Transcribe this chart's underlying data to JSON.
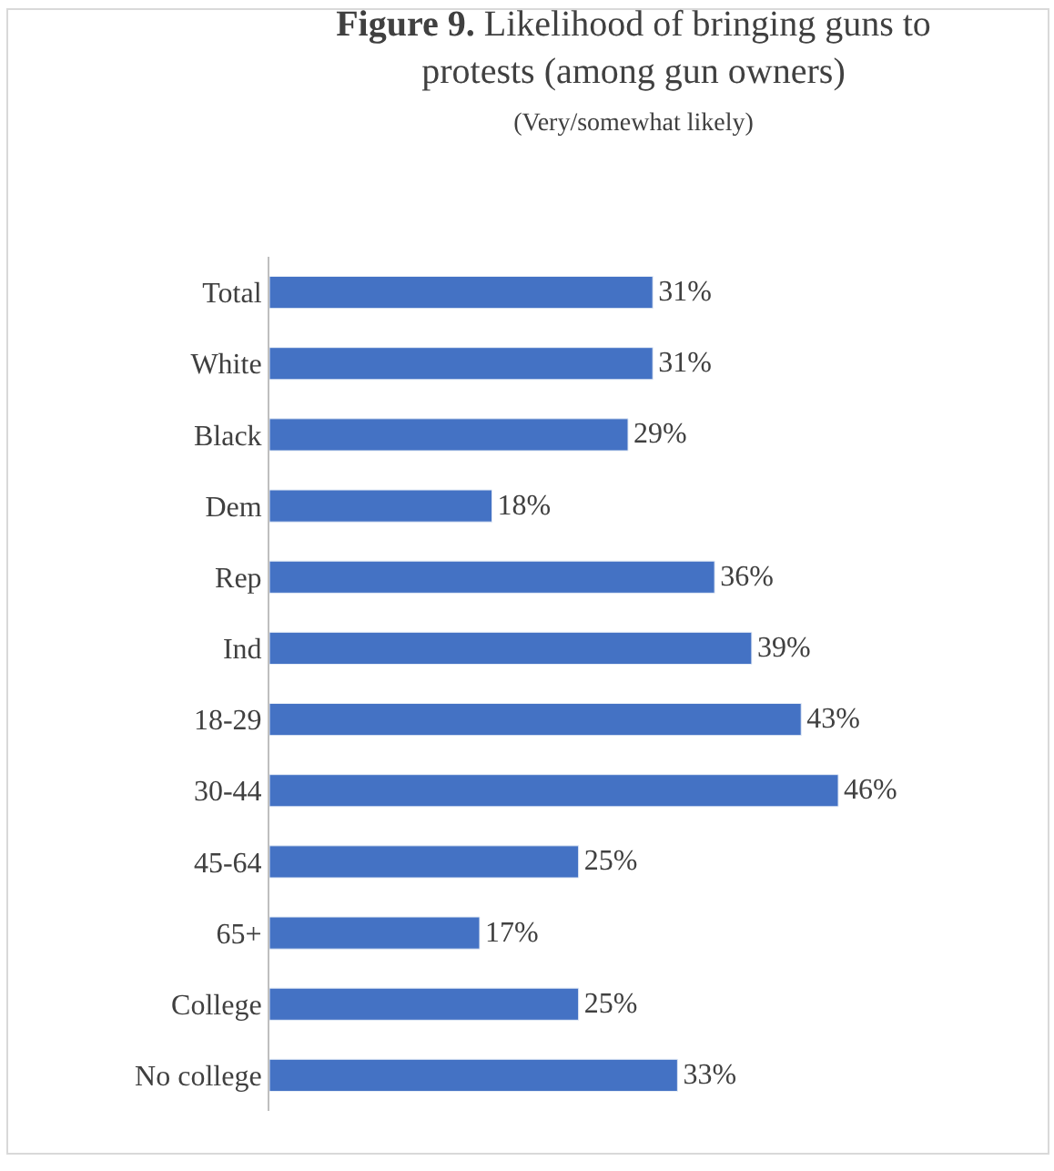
{
  "chart_data": {
    "type": "bar",
    "orientation": "horizontal",
    "title": "Figure 9. Likelihood of bringing guns to protests (among gun owners)",
    "subtitle": "(Very/somewhat likely)",
    "categories": [
      "Total",
      "White",
      "Black",
      "Dem",
      "Rep",
      "Ind",
      "18-29",
      "30-44",
      "45-64",
      "65+",
      "College",
      "No college"
    ],
    "values": [
      31,
      31,
      29,
      18,
      36,
      39,
      43,
      46,
      25,
      17,
      25,
      33
    ],
    "value_labels": [
      "31%",
      "31%",
      "29%",
      "18%",
      "36%",
      "39%",
      "43%",
      "46%",
      "25%",
      "17%",
      "25%",
      "33%"
    ],
    "color": "#4472c4",
    "legend": false
  }
}
